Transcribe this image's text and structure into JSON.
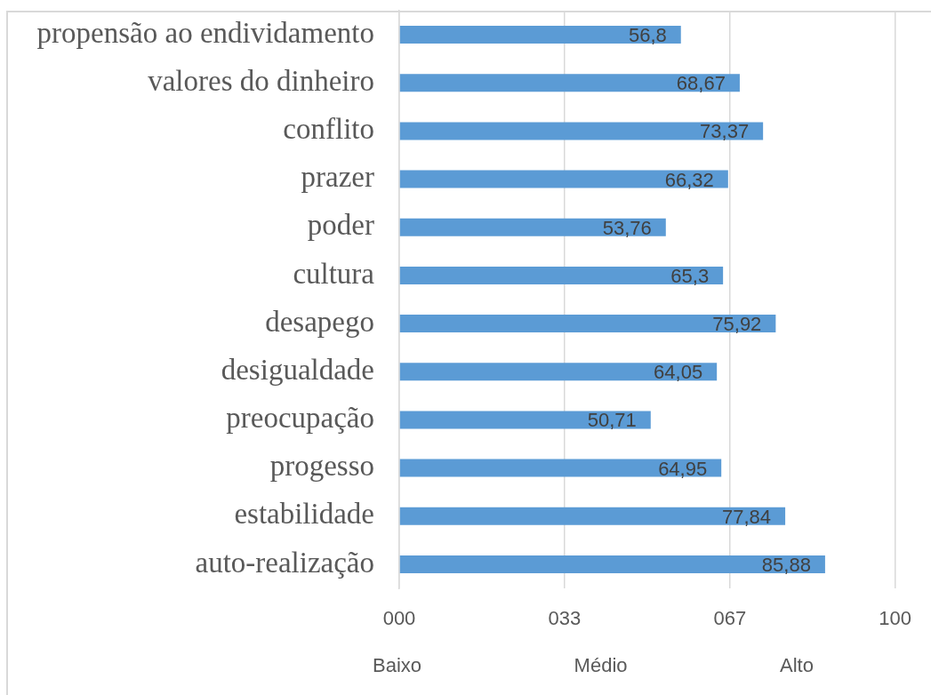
{
  "chart_data": {
    "type": "bar",
    "orientation": "horizontal",
    "categories": [
      "propensão ao endividamento",
      "valores do dinheiro",
      "conflito",
      "prazer",
      "poder",
      "cultura",
      "desapego",
      "desigualdade",
      "preocupação",
      "progesso",
      "estabilidade",
      "auto-realização"
    ],
    "values": [
      56.8,
      68.67,
      73.37,
      66.32,
      53.76,
      65.3,
      75.92,
      64.05,
      50.71,
      64.95,
      77.84,
      85.88
    ],
    "value_labels": [
      "56,8",
      "68,67",
      "73,37",
      "66,32",
      "53,76",
      "65,3",
      "75,92",
      "64,05",
      "50,71",
      "64,95",
      "77,84",
      "85,88"
    ],
    "color": "#5b9bd5",
    "xlim": [
      0,
      100
    ],
    "xticks": [
      {
        "value": 0,
        "label": "000"
      },
      {
        "value": 33.33,
        "label": "033"
      },
      {
        "value": 66.67,
        "label": "067"
      },
      {
        "value": 100,
        "label": "100"
      }
    ],
    "grid": "x",
    "annotations": [
      "Baixo",
      "Médio",
      "Alto"
    ]
  }
}
